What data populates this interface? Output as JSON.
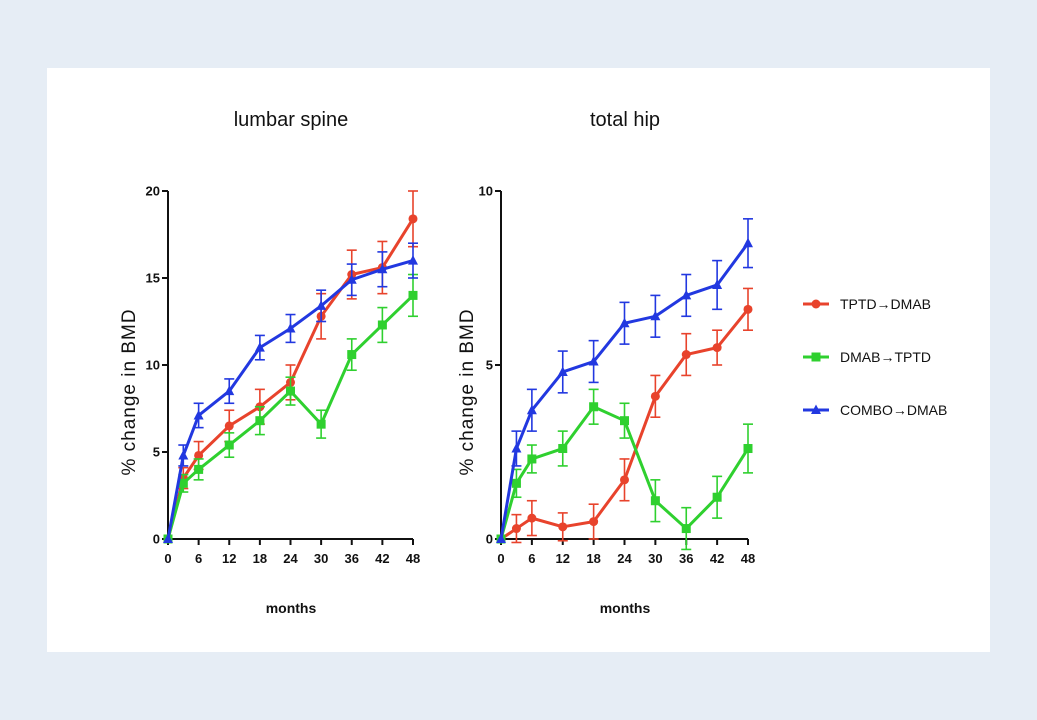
{
  "chart_data": [
    {
      "type": "line",
      "title": "lumbar spine",
      "xlabel": "months",
      "ylabel": "% change in BMD",
      "x": [
        0,
        3,
        6,
        12,
        18,
        24,
        30,
        36,
        42,
        48
      ],
      "xticks": [
        0,
        6,
        12,
        18,
        24,
        30,
        36,
        42,
        48
      ],
      "xlim": [
        0,
        48
      ],
      "ylim": [
        0,
        20
      ],
      "yticks": [
        0,
        5,
        10,
        15,
        20
      ],
      "grid": false,
      "series": [
        {
          "name": "TPTD→DMAB",
          "color": "#e8432c",
          "marker": "circle",
          "values": [
            0,
            3.5,
            4.8,
            6.5,
            7.6,
            9.0,
            12.8,
            15.2,
            15.6,
            18.4
          ],
          "errors": [
            0,
            0.6,
            0.8,
            0.9,
            1.0,
            1.0,
            1.3,
            1.4,
            1.5,
            1.6
          ]
        },
        {
          "name": "DMAB→TPTD",
          "color": "#2fd02f",
          "marker": "square",
          "values": [
            0,
            3.2,
            4.0,
            5.4,
            6.8,
            8.5,
            6.6,
            10.6,
            12.3,
            14.0
          ],
          "errors": [
            0,
            0.5,
            0.6,
            0.7,
            0.8,
            0.8,
            0.8,
            0.9,
            1.0,
            1.2
          ]
        },
        {
          "name": "COMBO→DMAB",
          "color": "#2238e0",
          "marker": "triangle",
          "values": [
            0,
            4.8,
            7.1,
            8.5,
            11.0,
            12.1,
            13.4,
            14.9,
            15.5,
            16.0
          ],
          "errors": [
            0,
            0.6,
            0.7,
            0.7,
            0.7,
            0.8,
            0.9,
            0.9,
            1.0,
            1.0
          ]
        }
      ]
    },
    {
      "type": "line",
      "title": "total hip",
      "xlabel": "months",
      "ylabel": "% change in BMD",
      "x": [
        0,
        3,
        6,
        12,
        18,
        24,
        30,
        36,
        42,
        48
      ],
      "xticks": [
        0,
        6,
        12,
        18,
        24,
        30,
        36,
        42,
        48
      ],
      "xlim": [
        0,
        48
      ],
      "ylim": [
        0,
        10
      ],
      "yticks": [
        0,
        5,
        10
      ],
      "grid": false,
      "series": [
        {
          "name": "TPTD→DMAB",
          "color": "#e8432c",
          "marker": "circle",
          "values": [
            0,
            0.3,
            0.6,
            0.35,
            0.5,
            1.7,
            4.1,
            5.3,
            5.5,
            6.6
          ],
          "errors": [
            0,
            0.4,
            0.5,
            0.4,
            0.5,
            0.6,
            0.6,
            0.6,
            0.5,
            0.6
          ]
        },
        {
          "name": "DMAB→TPTD",
          "color": "#2fd02f",
          "marker": "square",
          "values": [
            0,
            1.6,
            2.3,
            2.6,
            3.8,
            3.4,
            1.1,
            0.3,
            1.2,
            2.6
          ],
          "errors": [
            0,
            0.4,
            0.4,
            0.5,
            0.5,
            0.5,
            0.6,
            0.6,
            0.6,
            0.7
          ]
        },
        {
          "name": "COMBO→DMAB",
          "color": "#2238e0",
          "marker": "triangle",
          "values": [
            0,
            2.6,
            3.7,
            4.8,
            5.1,
            6.2,
            6.4,
            7.0,
            7.3,
            8.5
          ],
          "errors": [
            0,
            0.5,
            0.6,
            0.6,
            0.6,
            0.6,
            0.6,
            0.6,
            0.7,
            0.7
          ]
        }
      ]
    }
  ],
  "legend": {
    "position": "right",
    "items": [
      {
        "label": "TPTD→DMAB",
        "color": "#e8432c",
        "marker": "circle"
      },
      {
        "label": "DMAB→TPTD",
        "color": "#2fd02f",
        "marker": "square"
      },
      {
        "label": "COMBO→DMAB",
        "color": "#2238e0",
        "marker": "triangle"
      }
    ]
  }
}
